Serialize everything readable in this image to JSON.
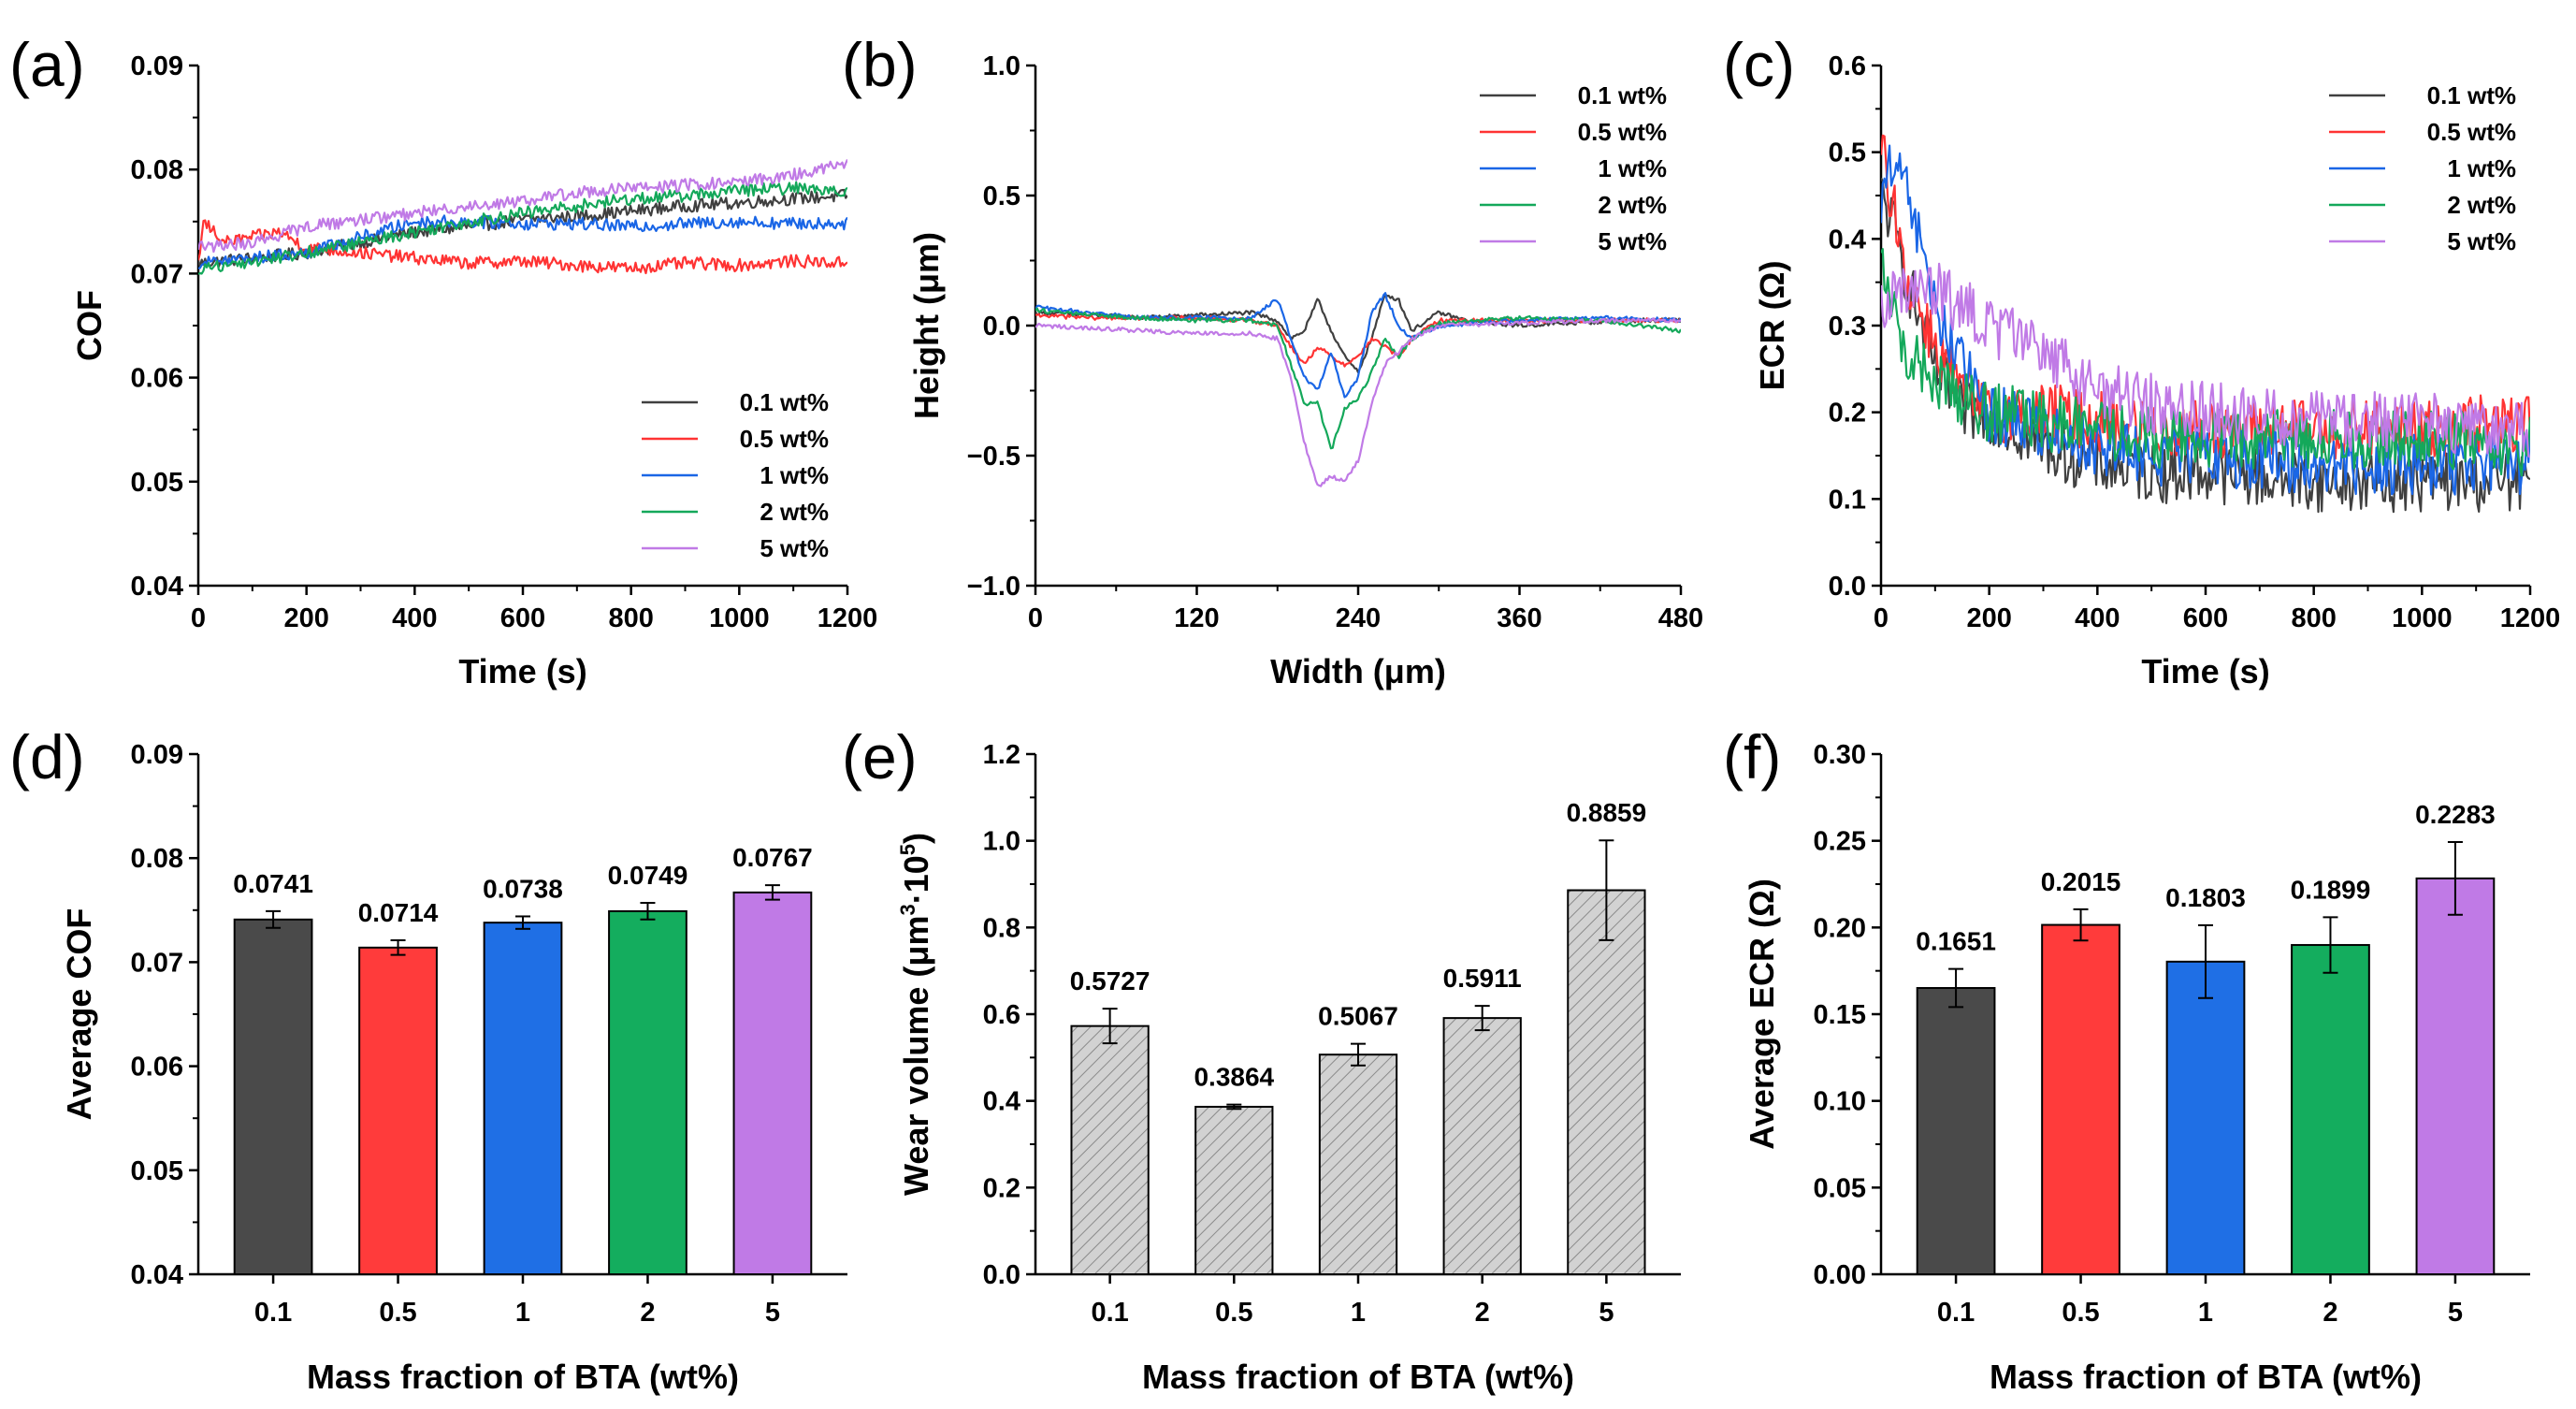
{
  "chart_data": [
    {
      "id": "a",
      "panel_label": "(a)",
      "type": "line",
      "xlabel": "Time (s)",
      "ylabel": "COF",
      "xlim": [
        0,
        1200
      ],
      "ylim": [
        0.04,
        0.09
      ],
      "xticks": [
        0,
        200,
        400,
        600,
        800,
        1000,
        1200
      ],
      "xtick_labels": [
        "0",
        "200",
        "400",
        "600",
        "800",
        "1000",
        "1200"
      ],
      "yticks": [
        0.04,
        0.05,
        0.06,
        0.07,
        0.08,
        0.09
      ],
      "ytick_labels": [
        "0.04",
        "0.05",
        "0.06",
        "0.07",
        "0.08",
        "0.09"
      ],
      "legend_position": "bottom-right",
      "noise": 0.0006,
      "series": [
        {
          "name": "0.1 wt%",
          "color": "#404040",
          "x": [
            0,
            100,
            200,
            300,
            400,
            500,
            600,
            700,
            800,
            900,
            1000,
            1100,
            1200
          ],
          "y": [
            0.071,
            0.0715,
            0.072,
            0.073,
            0.074,
            0.0745,
            0.0752,
            0.0755,
            0.076,
            0.0765,
            0.0768,
            0.0772,
            0.0775
          ]
        },
        {
          "name": "0.5 wt%",
          "color": "#ff3333",
          "x": [
            0,
            10,
            50,
            150,
            200,
            300,
            400,
            500,
            600,
            700,
            800,
            900,
            1000,
            1100,
            1200
          ],
          "y": [
            0.071,
            0.075,
            0.073,
            0.074,
            0.0725,
            0.072,
            0.0715,
            0.071,
            0.0712,
            0.0708,
            0.0705,
            0.071,
            0.0708,
            0.0712,
            0.071
          ]
        },
        {
          "name": "1 wt%",
          "color": "#1a66e6",
          "x": [
            0,
            100,
            200,
            300,
            400,
            500,
            600,
            700,
            800,
            900,
            1000,
            1100,
            1200
          ],
          "y": [
            0.071,
            0.0715,
            0.072,
            0.0735,
            0.075,
            0.075,
            0.0748,
            0.0748,
            0.0745,
            0.0748,
            0.075,
            0.0748,
            0.0748
          ]
        },
        {
          "name": "2 wt%",
          "color": "#14a85a",
          "x": [
            0,
            100,
            200,
            300,
            400,
            500,
            600,
            700,
            800,
            900,
            1000,
            1100,
            1200
          ],
          "y": [
            0.0705,
            0.0712,
            0.072,
            0.073,
            0.074,
            0.075,
            0.0758,
            0.0765,
            0.0772,
            0.0775,
            0.078,
            0.0782,
            0.078
          ]
        },
        {
          "name": "5 wt%",
          "color": "#c07ae6",
          "x": [
            0,
            100,
            200,
            300,
            400,
            500,
            600,
            700,
            800,
            900,
            1000,
            1100,
            1200
          ],
          "y": [
            0.0725,
            0.073,
            0.0745,
            0.0752,
            0.0758,
            0.0765,
            0.077,
            0.0778,
            0.0782,
            0.0785,
            0.0788,
            0.0795,
            0.0805
          ]
        }
      ]
    },
    {
      "id": "b",
      "panel_label": "(b)",
      "type": "line",
      "xlabel": "Width (μm)",
      "ylabel": "Height (μm)",
      "xlim": [
        0,
        480
      ],
      "ylim": [
        -1.0,
        1.0
      ],
      "xticks": [
        0,
        120,
        240,
        360,
        480
      ],
      "xtick_labels": [
        "0",
        "120",
        "240",
        "360",
        "480"
      ],
      "yticks": [
        -1.0,
        -0.5,
        0.0,
        0.5,
        1.0
      ],
      "ytick_labels": [
        "−1.0",
        "−0.5",
        "0.0",
        "0.5",
        "1.0"
      ],
      "legend_position": "top-right",
      "noise": 0.008,
      "series": [
        {
          "name": "0.1 wt%",
          "color": "#404040",
          "x": [
            0,
            40,
            80,
            120,
            160,
            180,
            190,
            200,
            210,
            220,
            230,
            240,
            250,
            260,
            270,
            280,
            300,
            320,
            360,
            400,
            440,
            480
          ],
          "y": [
            0.05,
            0.04,
            0.03,
            0.04,
            0.05,
            0.02,
            -0.05,
            -0.02,
            0.1,
            -0.02,
            -0.12,
            -0.18,
            -0.05,
            0.12,
            0.1,
            -0.02,
            0.05,
            0.02,
            0.0,
            0.01,
            0.02,
            0.02
          ]
        },
        {
          "name": "0.5 wt%",
          "color": "#ff3333",
          "x": [
            0,
            40,
            80,
            120,
            160,
            180,
            190,
            200,
            210,
            220,
            230,
            240,
            250,
            260,
            270,
            280,
            300,
            360,
            420,
            480
          ],
          "y": [
            0.04,
            0.03,
            0.03,
            0.03,
            0.02,
            0.0,
            -0.08,
            -0.15,
            -0.08,
            -0.12,
            -0.15,
            -0.12,
            -0.05,
            -0.08,
            -0.12,
            -0.05,
            0.02,
            0.02,
            0.02,
            0.02
          ]
        },
        {
          "name": "1 wt%",
          "color": "#1a66e6",
          "x": [
            0,
            40,
            80,
            120,
            160,
            180,
            190,
            200,
            210,
            220,
            230,
            240,
            250,
            260,
            270,
            280,
            300,
            360,
            420,
            480
          ],
          "y": [
            0.07,
            0.05,
            0.03,
            0.03,
            0.03,
            0.1,
            -0.05,
            -0.2,
            -0.25,
            -0.1,
            -0.28,
            -0.2,
            0.05,
            0.12,
            0.0,
            -0.05,
            0.0,
            0.02,
            0.03,
            0.02
          ]
        },
        {
          "name": "2 wt%",
          "color": "#14a85a",
          "x": [
            0,
            40,
            80,
            120,
            160,
            180,
            190,
            200,
            210,
            220,
            230,
            240,
            250,
            260,
            270,
            280,
            300,
            360,
            420,
            480
          ],
          "y": [
            0.06,
            0.04,
            0.03,
            0.02,
            0.02,
            0.0,
            -0.15,
            -0.3,
            -0.3,
            -0.48,
            -0.32,
            -0.28,
            -0.18,
            -0.05,
            -0.12,
            -0.05,
            0.01,
            0.03,
            0.02,
            -0.02
          ]
        },
        {
          "name": "5 wt%",
          "color": "#c07ae6",
          "x": [
            0,
            40,
            80,
            120,
            160,
            180,
            190,
            200,
            210,
            220,
            230,
            240,
            250,
            260,
            270,
            280,
            300,
            360,
            420,
            480
          ],
          "y": [
            0.0,
            -0.01,
            -0.02,
            -0.03,
            -0.03,
            -0.05,
            -0.2,
            -0.45,
            -0.62,
            -0.58,
            -0.6,
            -0.52,
            -0.3,
            -0.15,
            -0.1,
            -0.05,
            0.0,
            0.01,
            0.02,
            0.02
          ]
        }
      ]
    },
    {
      "id": "c",
      "panel_label": "(c)",
      "type": "line",
      "xlabel": "Time (s)",
      "ylabel": "ECR (Ω)",
      "xlim": [
        0,
        1200
      ],
      "ylim": [
        0.0,
        0.6
      ],
      "xticks": [
        0,
        200,
        400,
        600,
        800,
        1000,
        1200
      ],
      "xtick_labels": [
        "0",
        "200",
        "400",
        "600",
        "800",
        "1000",
        "1200"
      ],
      "yticks": [
        0.0,
        0.1,
        0.2,
        0.3,
        0.4,
        0.5,
        0.6
      ],
      "ytick_labels": [
        "0.0",
        "0.1",
        "0.2",
        "0.3",
        "0.4",
        "0.5",
        "0.6"
      ],
      "legend_position": "top-right",
      "noise": 0.035,
      "series": [
        {
          "name": "0.1 wt%",
          "color": "#404040",
          "x": [
            0,
            20,
            50,
            100,
            150,
            200,
            300,
            400,
            500,
            600,
            800,
            1000,
            1200
          ],
          "y": [
            0.45,
            0.42,
            0.35,
            0.25,
            0.2,
            0.2,
            0.16,
            0.14,
            0.13,
            0.13,
            0.12,
            0.12,
            0.12
          ]
        },
        {
          "name": "0.5 wt%",
          "color": "#ff3333",
          "x": [
            0,
            20,
            50,
            100,
            150,
            200,
            300,
            400,
            500,
            600,
            800,
            1000,
            1200
          ],
          "y": [
            0.5,
            0.45,
            0.35,
            0.28,
            0.22,
            0.2,
            0.2,
            0.19,
            0.18,
            0.18,
            0.18,
            0.18,
            0.19
          ]
        },
        {
          "name": "1 wt%",
          "color": "#1a66e6",
          "x": [
            0,
            20,
            50,
            100,
            150,
            200,
            300,
            400,
            500,
            600,
            800,
            1000,
            1200
          ],
          "y": [
            0.45,
            0.48,
            0.45,
            0.32,
            0.25,
            0.2,
            0.18,
            0.16,
            0.15,
            0.15,
            0.14,
            0.14,
            0.14
          ]
        },
        {
          "name": "2 wt%",
          "color": "#14a85a",
          "x": [
            0,
            20,
            50,
            100,
            150,
            200,
            300,
            400,
            500,
            600,
            800,
            1000,
            1200
          ],
          "y": [
            0.38,
            0.32,
            0.26,
            0.24,
            0.22,
            0.2,
            0.19,
            0.18,
            0.17,
            0.17,
            0.17,
            0.17,
            0.16
          ]
        },
        {
          "name": "5 wt%",
          "color": "#c07ae6",
          "x": [
            0,
            20,
            50,
            100,
            150,
            200,
            300,
            400,
            500,
            600,
            800,
            1000,
            1200
          ],
          "y": [
            0.33,
            0.34,
            0.34,
            0.34,
            0.32,
            0.3,
            0.27,
            0.23,
            0.21,
            0.2,
            0.19,
            0.19,
            0.18
          ]
        }
      ]
    },
    {
      "id": "d",
      "panel_label": "(d)",
      "type": "bar",
      "xlabel": "Mass fraction of BTA (wt%)",
      "ylabel": "Average COF",
      "ylim": [
        0.04,
        0.09
      ],
      "yticks": [
        0.04,
        0.05,
        0.06,
        0.07,
        0.08,
        0.09
      ],
      "ytick_labels": [
        "0.04",
        "0.05",
        "0.06",
        "0.07",
        "0.08",
        "0.09"
      ],
      "categories": [
        "0.1",
        "0.5",
        "1",
        "2",
        "5"
      ],
      "values": [
        0.0741,
        0.0714,
        0.0738,
        0.0749,
        0.0767
      ],
      "value_labels": [
        "0.0741",
        "0.0714",
        "0.0738",
        "0.0749",
        "0.0767"
      ],
      "errors": [
        0.0008,
        0.0007,
        0.0006,
        0.0008,
        0.0007
      ],
      "colors": [
        "#4a4a4a",
        "#ff3b3b",
        "#1f6fe5",
        "#14ad5e",
        "#c07ae6"
      ],
      "hatched": false
    },
    {
      "id": "e",
      "panel_label": "(e)",
      "type": "bar",
      "xlabel": "Mass fraction of BTA (wt%)",
      "ylabel": "Wear volume (μm³·10⁵)",
      "ylabel_parts": [
        "Wear volume (μm",
        "3",
        "·10",
        "5",
        ")"
      ],
      "ylim": [
        0.0,
        1.2
      ],
      "yticks": [
        0.0,
        0.2,
        0.4,
        0.6,
        0.8,
        1.0,
        1.2
      ],
      "ytick_labels": [
        "0.0",
        "0.2",
        "0.4",
        "0.6",
        "0.8",
        "1.0",
        "1.2"
      ],
      "categories": [
        "0.1",
        "0.5",
        "1",
        "2",
        "5"
      ],
      "values": [
        0.5727,
        0.3864,
        0.5067,
        0.5911,
        0.8859
      ],
      "value_labels": [
        "0.5727",
        "0.3864",
        "0.5067",
        "0.5911",
        "0.8859"
      ],
      "errors": [
        0.04,
        0.005,
        0.025,
        0.028,
        0.115
      ],
      "colors": [
        "#d0d0d0",
        "#d0d0d0",
        "#d0d0d0",
        "#d0d0d0",
        "#d0d0d0"
      ],
      "hatched": true
    },
    {
      "id": "f",
      "panel_label": "(f)",
      "type": "bar",
      "xlabel": "Mass fraction of BTA (wt%)",
      "ylabel": "Average ECR (Ω)",
      "ylim": [
        0.0,
        0.3
      ],
      "yticks": [
        0.0,
        0.05,
        0.1,
        0.15,
        0.2,
        0.25,
        0.3
      ],
      "ytick_labels": [
        "0.00",
        "0.05",
        "0.10",
        "0.15",
        "0.20",
        "0.25",
        "0.30"
      ],
      "categories": [
        "0.1",
        "0.5",
        "1",
        "2",
        "5"
      ],
      "values": [
        0.1651,
        0.2015,
        0.1803,
        0.1899,
        0.2283
      ],
      "value_labels": [
        "0.1651",
        "0.2015",
        "0.1803",
        "0.1899",
        "0.2283"
      ],
      "errors": [
        0.011,
        0.009,
        0.021,
        0.016,
        0.021
      ],
      "colors": [
        "#4a4a4a",
        "#ff3b3b",
        "#1f6fe5",
        "#14ad5e",
        "#c07ae6"
      ],
      "hatched": false
    }
  ]
}
